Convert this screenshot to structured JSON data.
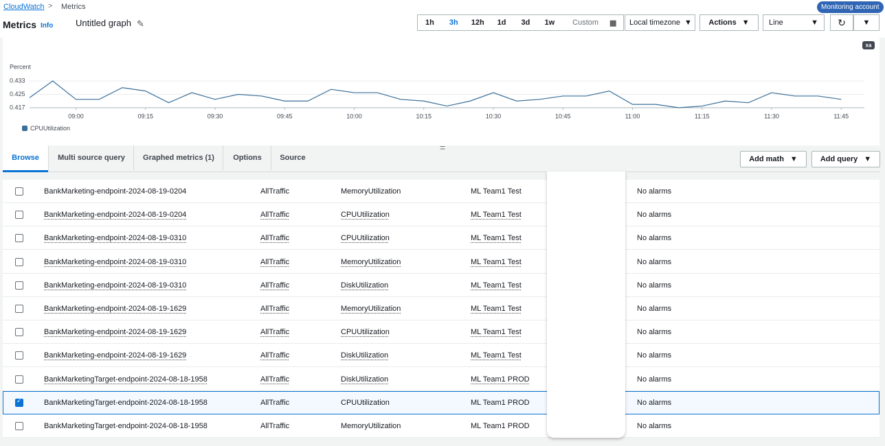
{
  "breadcrumb": [
    "CloudWatch",
    "Metrics"
  ],
  "badge": "Monitoring account",
  "header": {
    "title": "Metrics",
    "info": "Info",
    "graph_name": "Untitled graph"
  },
  "time_ranges": {
    "options": [
      "1h",
      "3h",
      "12h",
      "1d",
      "3d",
      "1w",
      "Custom"
    ],
    "selected": 1
  },
  "dropdowns": [
    "Local timezone",
    "Actions",
    "Line"
  ],
  "chart_data": {
    "type": "line",
    "corner_badge": "xa",
    "y_label": "Percent",
    "ylim": [
      0.417,
      0.433
    ],
    "yticks": [
      0.433,
      0.425,
      0.417
    ],
    "xlim": [
      0,
      36
    ],
    "xticks": [
      {
        "value": 2,
        "label": "09:00"
      },
      {
        "value": 5,
        "label": "09:15"
      },
      {
        "value": 8,
        "label": "09:30"
      },
      {
        "value": 11,
        "label": "09:45"
      },
      {
        "value": 14,
        "label": "10:00"
      },
      {
        "value": 17,
        "label": "10:15"
      },
      {
        "value": 20,
        "label": "10:30"
      },
      {
        "value": 23,
        "label": "10:45"
      },
      {
        "value": 26,
        "label": "11:00"
      },
      {
        "value": 29,
        "label": "11:15"
      },
      {
        "value": 32,
        "label": "11:30"
      },
      {
        "value": 35,
        "label": "11:45"
      }
    ],
    "grid": true,
    "series": [
      {
        "name": "CPUUtilization",
        "color": "#3a6f98",
        "values": [
          0.423,
          0.433,
          0.422,
          0.422,
          0.429,
          0.427,
          0.42,
          0.426,
          0.422,
          0.425,
          0.424,
          0.421,
          0.421,
          0.428,
          0.426,
          0.426,
          0.422,
          0.421,
          0.418,
          0.421,
          0.426,
          0.421,
          0.422,
          0.424,
          0.424,
          0.427,
          0.419,
          0.419,
          0.417,
          0.418,
          0.421,
          0.42,
          0.426,
          0.424,
          0.424,
          0.422
        ]
      }
    ]
  },
  "tabs": {
    "items": [
      "Browse",
      "Multi source query",
      "Graphed metrics (1)",
      "Options",
      "Source"
    ],
    "selected": 0
  },
  "buttons": [
    "Add math",
    "Add query"
  ],
  "table": {
    "rows": [
      {
        "cells": [
          "BankMarketing-endpoint-2024-08-19-0204",
          "AllTraffic",
          "MemoryUtilization",
          "ML Team1 Test",
          "No alarms"
        ],
        "checked": false,
        "linked": false
      },
      {
        "cells": [
          "BankMarketing-endpoint-2024-08-19-0204",
          "AllTraffic",
          "CPUUtilization",
          "ML Team1 Test",
          "No alarms"
        ],
        "checked": false,
        "linked": true
      },
      {
        "cells": [
          "BankMarketing-endpoint-2024-08-19-0310",
          "AllTraffic",
          "CPUUtilization",
          "ML Team1 Test",
          "No alarms"
        ],
        "checked": false,
        "linked": true
      },
      {
        "cells": [
          "BankMarketing-endpoint-2024-08-19-0310",
          "AllTraffic",
          "MemoryUtilization",
          "ML Team1 Test",
          "No alarms"
        ],
        "checked": false,
        "linked": true
      },
      {
        "cells": [
          "BankMarketing-endpoint-2024-08-19-0310",
          "AllTraffic",
          "DiskUtilization",
          "ML Team1 Test",
          "No alarms"
        ],
        "checked": false,
        "linked": true
      },
      {
        "cells": [
          "BankMarketing-endpoint-2024-08-19-1629",
          "AllTraffic",
          "MemoryUtilization",
          "ML Team1 Test",
          "No alarms"
        ],
        "checked": false,
        "linked": true
      },
      {
        "cells": [
          "BankMarketing-endpoint-2024-08-19-1629",
          "AllTraffic",
          "CPUUtilization",
          "ML Team1 Test",
          "No alarms"
        ],
        "checked": false,
        "linked": true
      },
      {
        "cells": [
          "BankMarketing-endpoint-2024-08-19-1629",
          "AllTraffic",
          "DiskUtilization",
          "ML Team1 Test",
          "No alarms"
        ],
        "checked": false,
        "linked": true
      },
      {
        "cells": [
          "BankMarketingTarget-endpoint-2024-08-18-1958",
          "AllTraffic",
          "DiskUtilization",
          "ML Team1 PROD",
          "No alarms"
        ],
        "checked": false,
        "linked": true
      },
      {
        "cells": [
          "BankMarketingTarget-endpoint-2024-08-18-1958",
          "AllTraffic",
          "CPUUtilization",
          "ML Team1 PROD",
          "No alarms"
        ],
        "checked": true,
        "linked": false
      },
      {
        "cells": [
          "BankMarketingTarget-endpoint-2024-08-18-1958",
          "AllTraffic",
          "MemoryUtilization",
          "ML Team1 PROD",
          "No alarms"
        ],
        "checked": false,
        "linked": false
      }
    ]
  }
}
